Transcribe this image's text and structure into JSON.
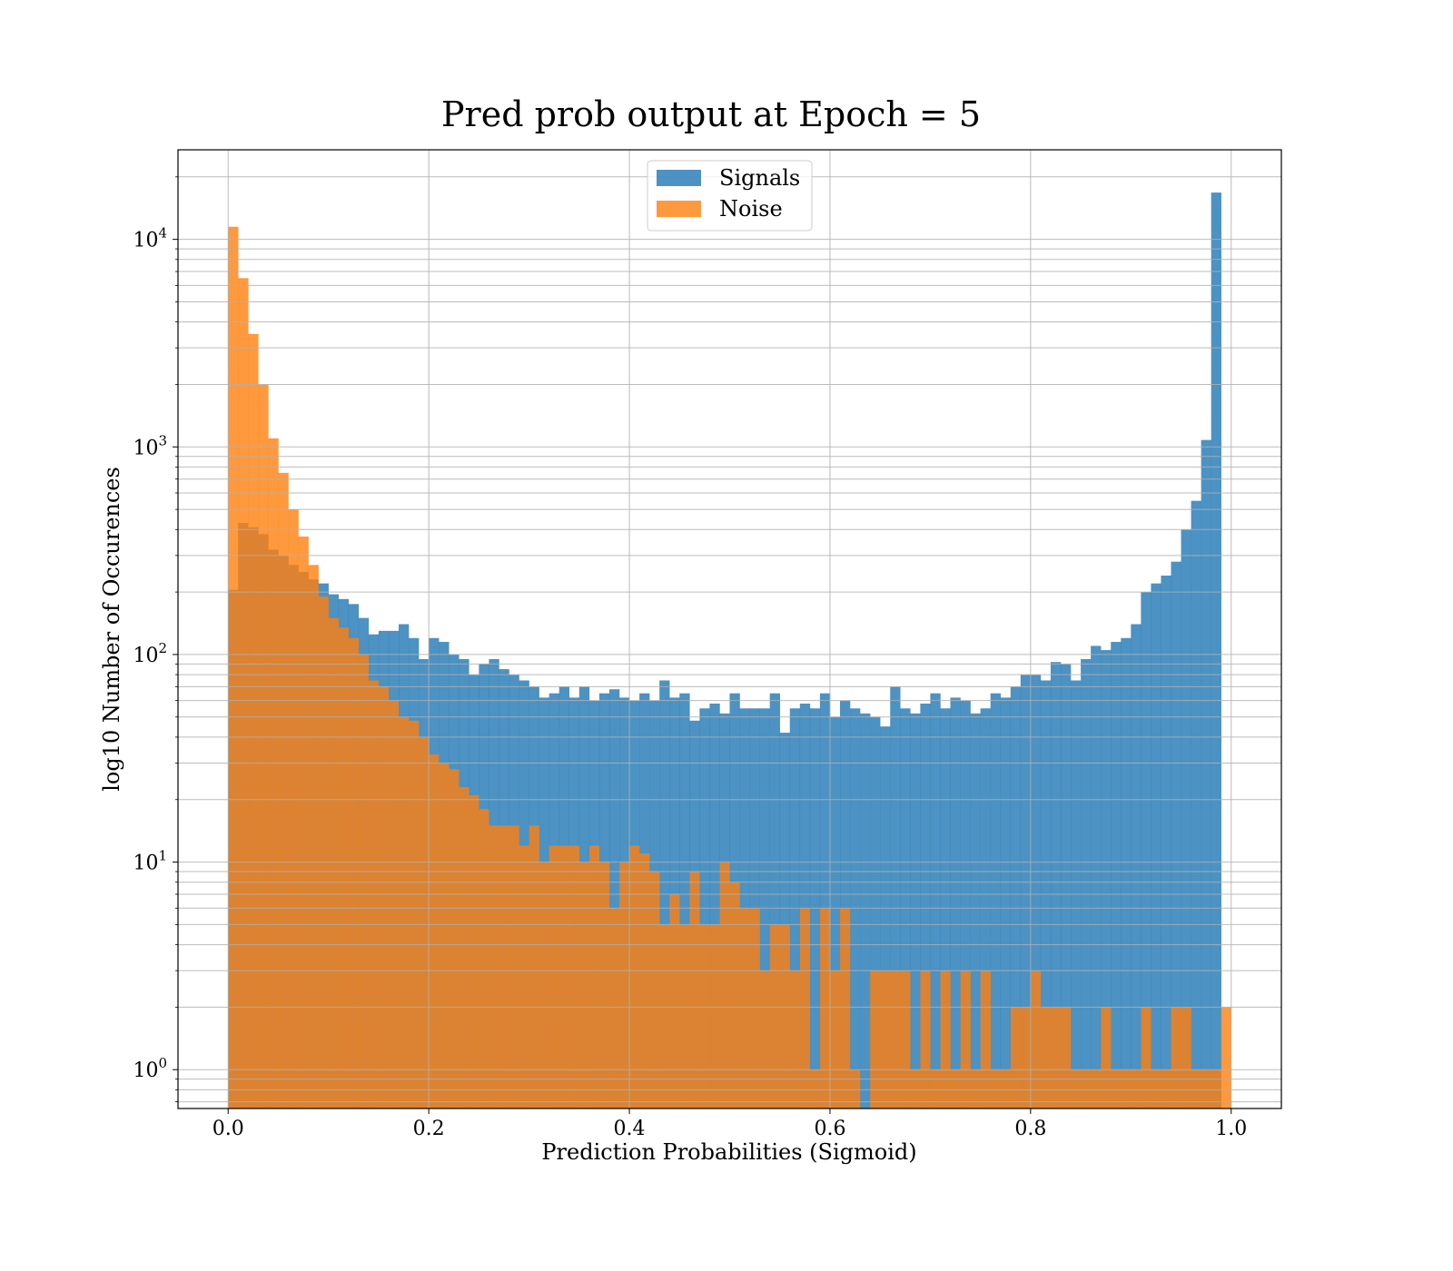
{
  "chart_data": {
    "type": "bar",
    "subtype": "overlaid-histogram",
    "title": "Pred prob output at Epoch = 5",
    "xlabel": "Prediction Probabilities (Sigmoid)",
    "ylabel": "log10 Number of Occurences",
    "xlim": [
      -0.05,
      1.05
    ],
    "ylim": [
      0.65,
      27000
    ],
    "yscale": "log",
    "grid": true,
    "legend_position": "top-center",
    "x_ticks": [
      "0.0",
      "0.2",
      "0.4",
      "0.6",
      "0.8",
      "1.0"
    ],
    "y_ticks": [
      {
        "base": "10",
        "exp": "0"
      },
      {
        "base": "10",
        "exp": "1"
      },
      {
        "base": "10",
        "exp": "2"
      },
      {
        "base": "10",
        "exp": "3"
      },
      {
        "base": "10",
        "exp": "4"
      }
    ],
    "bin_start": 0.0,
    "bin_end": 1.0,
    "bin_count": 100,
    "series": [
      {
        "name": "Signals",
        "color": "#1f77b4",
        "opacity": 0.8,
        "values": [
          205,
          430,
          410,
          380,
          320,
          300,
          270,
          250,
          230,
          220,
          195,
          185,
          175,
          150,
          125,
          130,
          130,
          140,
          120,
          95,
          120,
          115,
          100,
          95,
          80,
          90,
          95,
          85,
          80,
          75,
          70,
          62,
          65,
          70,
          62,
          70,
          60,
          65,
          68,
          62,
          60,
          65,
          60,
          75,
          62,
          65,
          48,
          55,
          58,
          52,
          65,
          55,
          55,
          55,
          65,
          42,
          55,
          58,
          55,
          65,
          50,
          60,
          55,
          52,
          50,
          45,
          70,
          55,
          52,
          58,
          65,
          55,
          62,
          60,
          52,
          55,
          65,
          62,
          70,
          80,
          80,
          75,
          92,
          90,
          75,
          95,
          110,
          105,
          115,
          120,
          140,
          200,
          220,
          240,
          280,
          400,
          550,
          1080,
          16800,
          0
        ]
      },
      {
        "name": "Noise",
        "color": "#ff7f0e",
        "opacity": 0.8,
        "values": [
          11500,
          6500,
          3500,
          2000,
          1100,
          750,
          500,
          370,
          270,
          190,
          150,
          135,
          120,
          100,
          75,
          70,
          60,
          50,
          48,
          40,
          33,
          30,
          28,
          23,
          21,
          18,
          15,
          15,
          15,
          12,
          15,
          10,
          12,
          12,
          12,
          10,
          12,
          10,
          6,
          10,
          12,
          11,
          9,
          5,
          7,
          5,
          9,
          5,
          5,
          10,
          8,
          6,
          6,
          3,
          5,
          5,
          3,
          6,
          1,
          6,
          3,
          6,
          1,
          0,
          3,
          3,
          3,
          3,
          1,
          3,
          1,
          3,
          1,
          3,
          1,
          3,
          1,
          1,
          2,
          2,
          3,
          2,
          2,
          2,
          1,
          1,
          1,
          2,
          1,
          1,
          1,
          2,
          1,
          1,
          2,
          2,
          1,
          1,
          1,
          2
        ]
      }
    ]
  }
}
